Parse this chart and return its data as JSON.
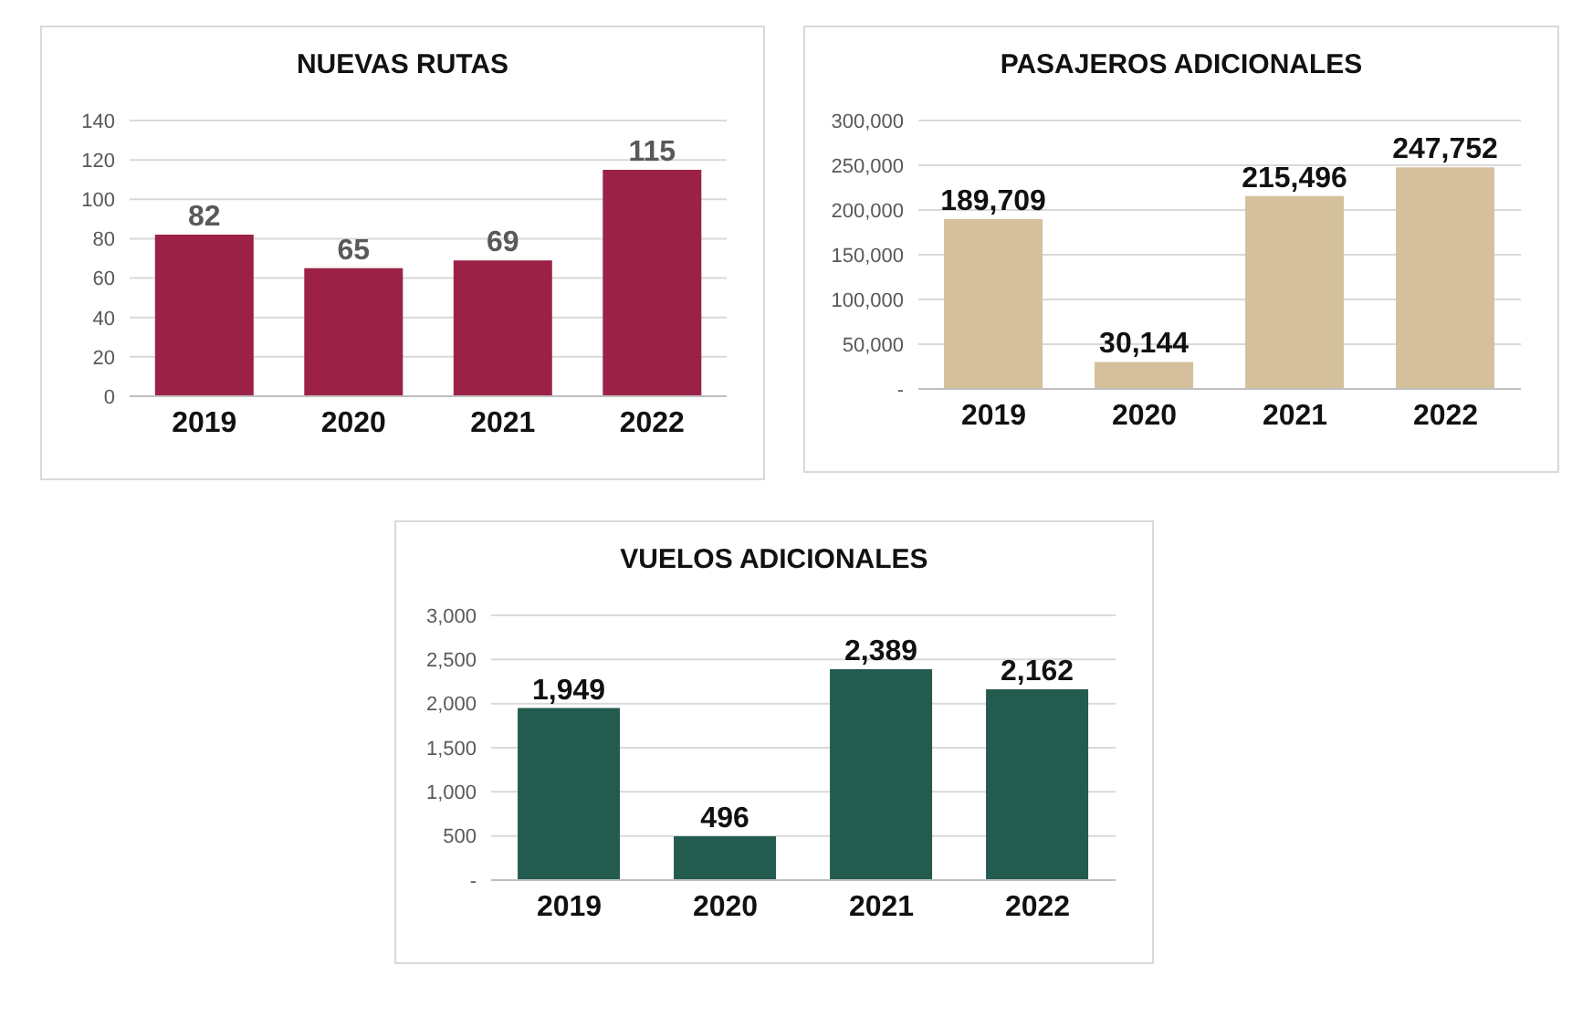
{
  "chart_data": [
    {
      "type": "bar",
      "title": "NUEVAS RUTAS",
      "categories": [
        "2019",
        "2020",
        "2021",
        "2022"
      ],
      "values": [
        82,
        65,
        69,
        115
      ],
      "color": "#9b2246",
      "ylim": [
        0,
        140
      ],
      "yticks": [
        0,
        20,
        40,
        60,
        80,
        100,
        120,
        140
      ],
      "grid": "y",
      "data_labels": true
    },
    {
      "type": "bar",
      "title": "PASAJEROS ADICIONALES",
      "categories": [
        "2019",
        "2020",
        "2021",
        "2022"
      ],
      "values": [
        189709,
        30144,
        215496,
        247752
      ],
      "value_labels": [
        "189,709",
        "30,144",
        "215,496",
        "247,752"
      ],
      "color": "#d4c19c",
      "ylim": [
        0,
        300000
      ],
      "yticks": [
        {
          "value": 0,
          "label": "-"
        },
        {
          "value": 50000,
          "label": "50,000"
        },
        {
          "value": 100000,
          "label": "100,000"
        },
        {
          "value": 150000,
          "label": "150,000"
        },
        {
          "value": 200000,
          "label": "200,000"
        },
        {
          "value": 250000,
          "label": "250,000"
        },
        {
          "value": 300000,
          "label": "300,000"
        }
      ],
      "grid": "y"
    },
    {
      "type": "bar",
      "title": "VUELOS ADICIONALES",
      "categories": [
        "2019",
        "2020",
        "2021",
        "2022"
      ],
      "values": [
        1949,
        496,
        2389,
        2162
      ],
      "value_labels": [
        "1,949",
        "496",
        "2,389",
        "2,162"
      ],
      "color": "#235b4e",
      "ylim": [
        0,
        3000
      ],
      "yticks": [
        {
          "value": 0,
          "label": "-"
        },
        {
          "value": 500,
          "label": "500"
        },
        {
          "value": 1000,
          "label": "1,000"
        },
        {
          "value": 1500,
          "label": "1,500"
        },
        {
          "value": 2000,
          "label": "2,000"
        },
        {
          "value": 2500,
          "label": "2,500"
        },
        {
          "value": 3000,
          "label": "3,000"
        }
      ],
      "grid": "y"
    }
  ]
}
